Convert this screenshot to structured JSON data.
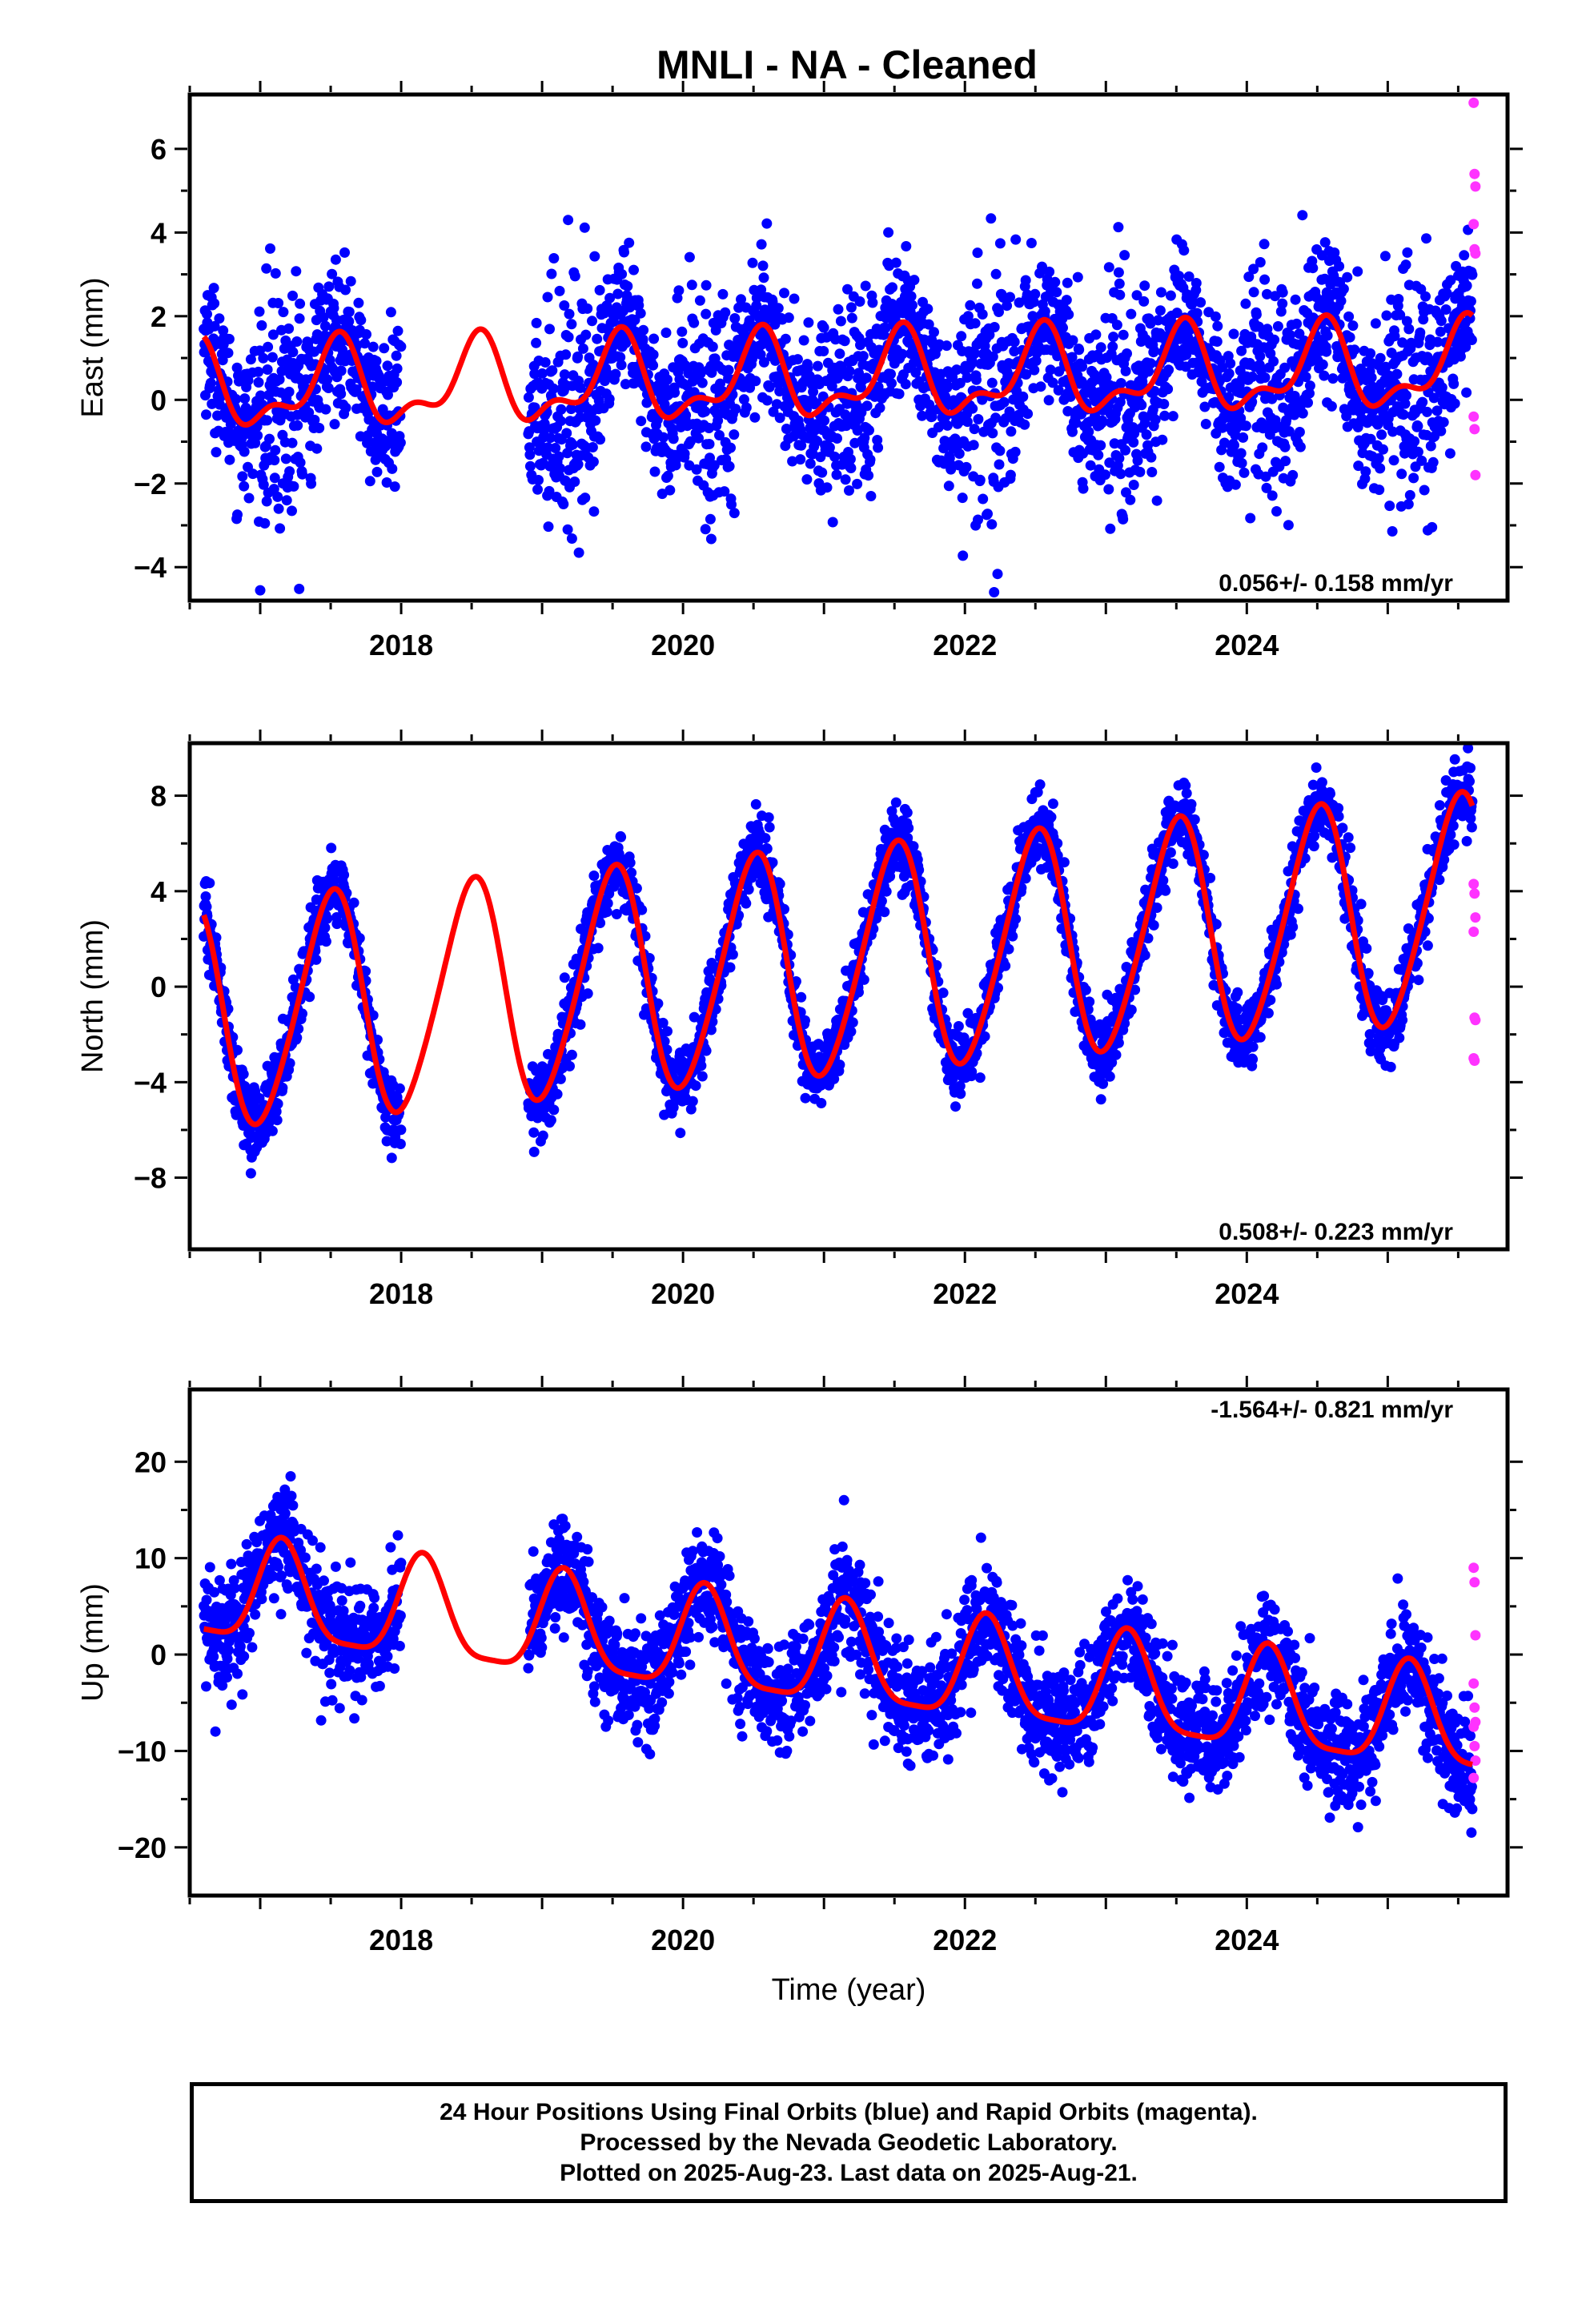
{
  "title": "MNLI  - NA - Cleaned",
  "colors": {
    "final": "#0000ff",
    "rapid": "#ff33ff",
    "model": "#ff0000",
    "frame": "#000000"
  },
  "caption": {
    "line1": "24 Hour Positions Using Final Orbits (blue) and Rapid Orbits (magenta).",
    "line2": "Processed by the Nevada Geodetic Laboratory.",
    "line3": "Plotted on 2025-Aug-23. Last data on 2025-Aug-21."
  },
  "chart_data": [
    {
      "type": "scatter",
      "ylabel": "East (mm)",
      "xlabel": "",
      "rate_label": "0.056+/- 0.158 mm/yr",
      "xlim": [
        2016.5,
        2025.85
      ],
      "ylim": [
        -4.8,
        7.3
      ],
      "yticks": [
        -4,
        -2,
        0,
        2,
        4,
        6
      ],
      "xticks": [
        2018,
        2020,
        2022,
        2024
      ],
      "trend": {
        "start": 2016.6,
        "end": 2025.6,
        "value_start": 0.25,
        "slope": 0.056,
        "amp1": 0.9,
        "amp2": 0.45,
        "phase1": -1.8,
        "phase2": 0.6
      },
      "gaps": [
        [
          2018.0,
          2018.9
        ]
      ],
      "scatter_sd": 1.2,
      "seasonal_scatter": 0.9,
      "rapid": [
        7.1,
        5.4,
        5.1,
        4.2,
        3.6,
        3.5,
        -0.4,
        -0.7,
        -1.8
      ]
    },
    {
      "type": "scatter",
      "ylabel": "North (mm)",
      "xlabel": "",
      "rate_label": "0.508+/- 0.223 mm/yr",
      "xlim": [
        2016.5,
        2025.85
      ],
      "ylim": [
        -11.0,
        10.2
      ],
      "yticks": [
        -8,
        -4,
        0,
        4,
        8
      ],
      "xticks": [
        2018,
        2020,
        2022,
        2024
      ],
      "trend": {
        "start": 2016.6,
        "end": 2025.6,
        "value_start": -1.3,
        "slope": 0.508,
        "amp1": 4.7,
        "amp2": 0.5,
        "phase1": -1.57,
        "phase2": 0.3
      },
      "gaps": [
        [
          2018.0,
          2018.9
        ]
      ],
      "scatter_sd": 1.1,
      "seasonal_scatter": 0.0,
      "rapid": [
        4.3,
        3.9,
        2.9,
        2.3,
        -1.3,
        -1.4,
        -3.0,
        -3.1
      ]
    },
    {
      "type": "scatter",
      "ylabel": "Up (mm)",
      "xlabel": "Time (year)",
      "rate_label": "-1.564+/- 0.821 mm/yr",
      "xlim": [
        2016.5,
        2025.85
      ],
      "ylim": [
        -25,
        27.5
      ],
      "yticks": [
        -20,
        -10,
        0,
        10,
        20
      ],
      "xticks": [
        2018,
        2020,
        2022,
        2024
      ],
      "trend": {
        "start": 2016.6,
        "end": 2025.6,
        "value_start": 6.5,
        "slope": -1.564,
        "amp1": 5.2,
        "amp2": 1.3,
        "phase1": 0.6,
        "phase2": -0.3
      },
      "gaps": [
        [
          2018.0,
          2018.9
        ]
      ],
      "scatter_sd": 4.2,
      "seasonal_scatter": 0.0,
      "rapid": [
        9.0,
        7.5,
        2.0,
        -3.0,
        -5.5,
        -7.0,
        -7.5,
        -9.5,
        -11.0,
        -12.8
      ]
    }
  ]
}
